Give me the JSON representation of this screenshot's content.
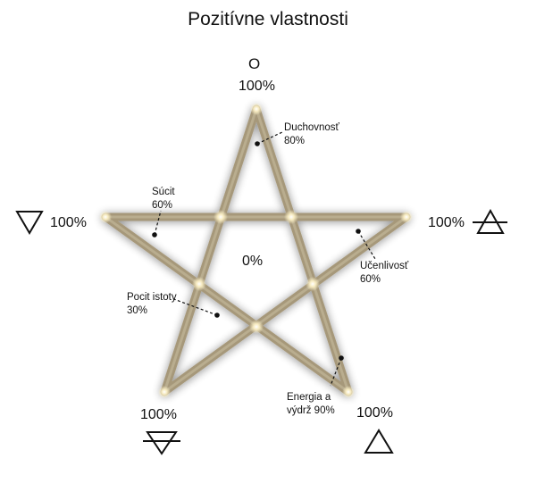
{
  "title": "Pozitívne vlastnosti",
  "center_label": "0%",
  "vertices": {
    "top": {
      "symbol": "O",
      "value": "100%",
      "element": "spirit"
    },
    "right": {
      "value": "100%",
      "icon": "air-symbol-icon"
    },
    "left": {
      "value": "100%",
      "icon": "water-symbol-icon"
    },
    "bottom_left": {
      "value": "100%",
      "icon": "earth-symbol-icon"
    },
    "bottom_right": {
      "value": "100%",
      "icon": "fire-symbol-icon"
    }
  },
  "annotations": [
    {
      "label": "Duchovnosť",
      "value": "80%"
    },
    {
      "label": "Súcit",
      "value": "60%"
    },
    {
      "label": "Učenlivosť",
      "value": "60%"
    },
    {
      "label": "Pocit istoty",
      "value": "30%"
    },
    {
      "label": "Energia a",
      "label2": "výdrž 90%"
    }
  ],
  "colors": {
    "star_stroke": "#a89a7c",
    "star_glow": "#fff6d8",
    "text": "#111111"
  }
}
